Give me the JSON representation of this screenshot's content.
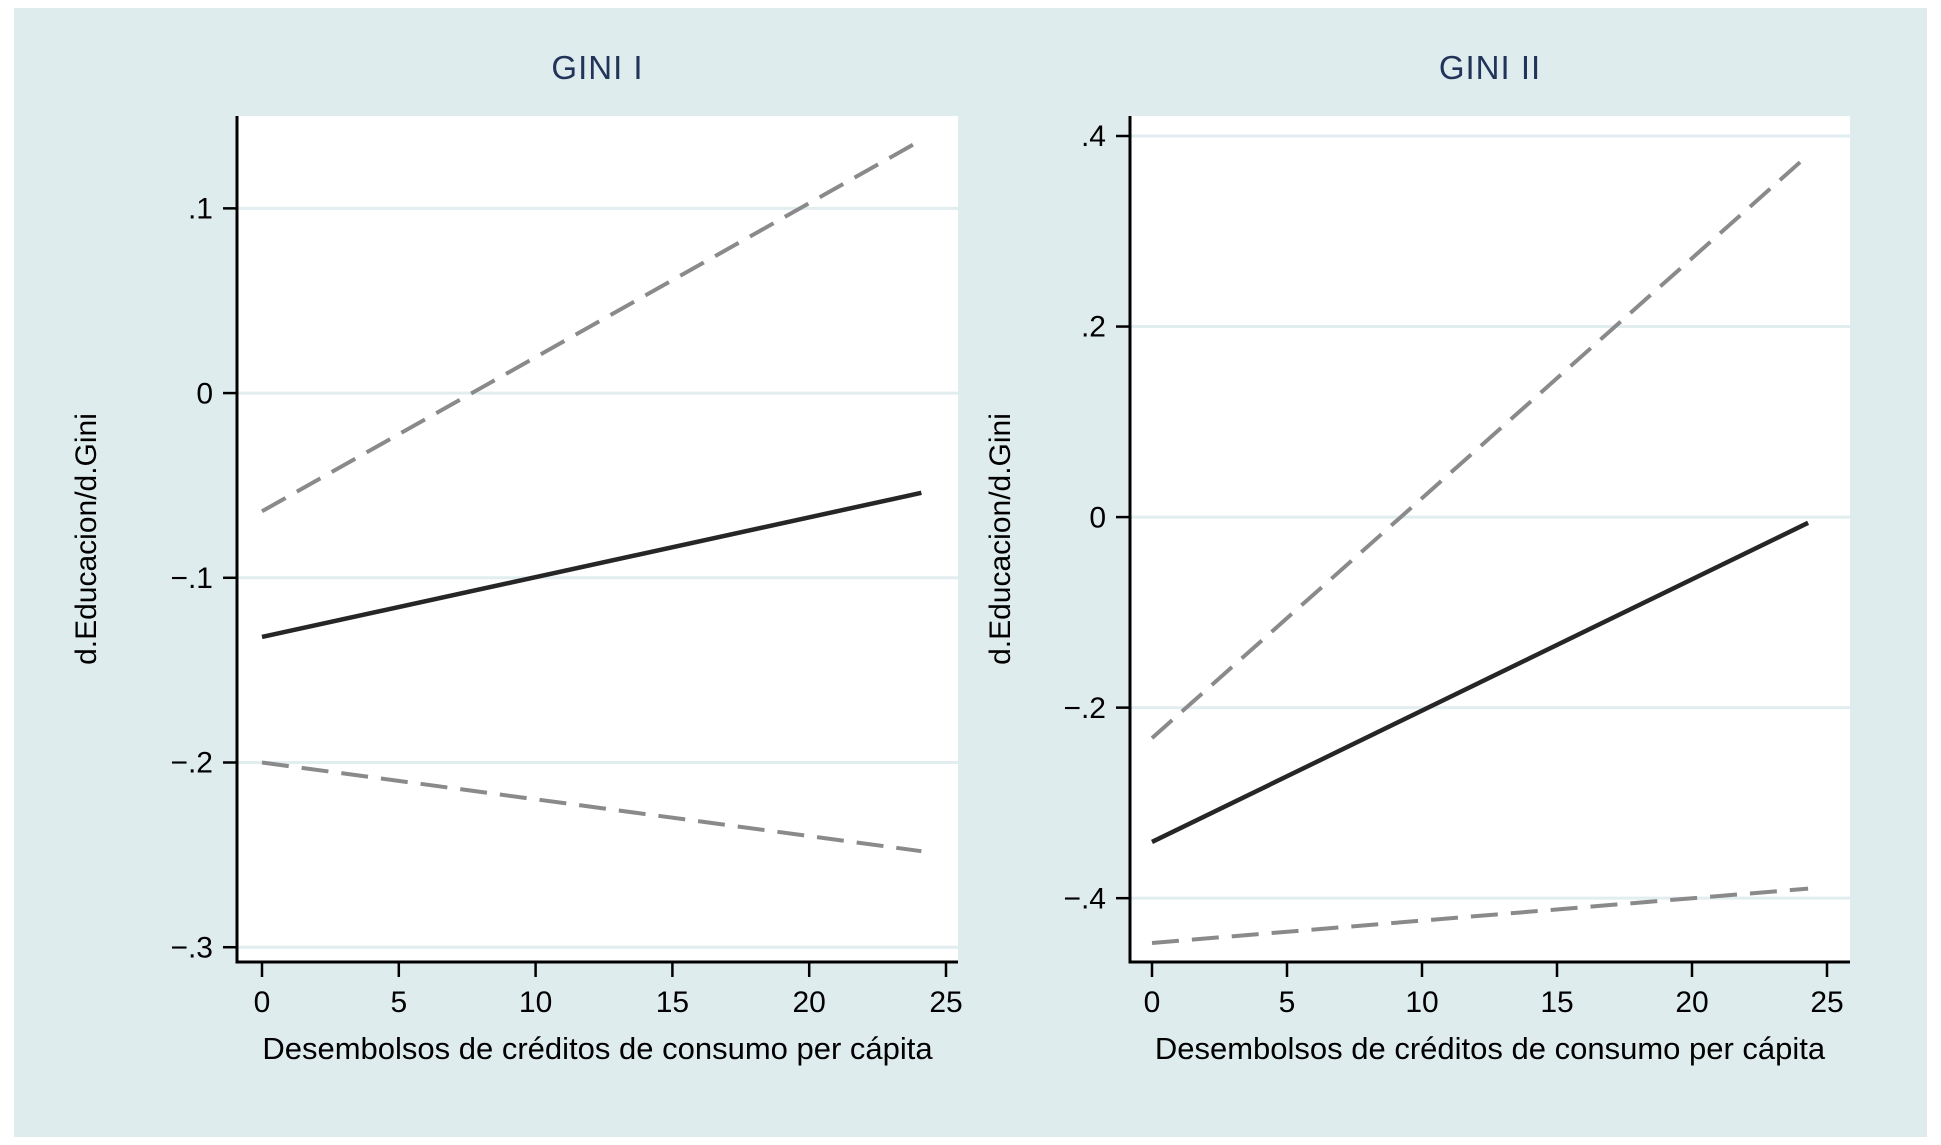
{
  "figure": {
    "background": "#ffffff",
    "canvas_color": "#dfecee",
    "plot_background": "#ffffff",
    "gridline_color": "#e2edef",
    "axis_color": "#000000",
    "tick_label_color": "#000000",
    "title_color": "#223459",
    "solid_line_color": "#262626",
    "dashed_line_color": "#8a8a8a"
  },
  "chart_data": [
    {
      "type": "line",
      "title": "GINI I",
      "xlabel": "Desembolsos de créditos de consumo per cápita",
      "ylabel": "d.Educacion/d.Gini",
      "xlim": [
        -0.9,
        25.4
      ],
      "ylim": [
        -0.308,
        0.15
      ],
      "grid": "horizontal-only",
      "legend": "none",
      "xticks": [
        {
          "value": 0,
          "label": "0"
        },
        {
          "value": 5,
          "label": "5"
        },
        {
          "value": 10,
          "label": "10"
        },
        {
          "value": 15,
          "label": "15"
        },
        {
          "value": 20,
          "label": "20"
        },
        {
          "value": 25,
          "label": "25"
        }
      ],
      "yticks": [
        {
          "value": 0.1,
          "label": ".1"
        },
        {
          "value": 0,
          "label": "0"
        },
        {
          "value": -0.1,
          "label": "−.1"
        },
        {
          "value": -0.2,
          "label": "−.2"
        },
        {
          "value": -0.3,
          "label": "−.3"
        }
      ],
      "series": [
        {
          "name": "marginal-effect",
          "style": "solid",
          "x": [
            0,
            24.1
          ],
          "y": [
            -0.132,
            -0.054
          ]
        },
        {
          "name": "ci-upper",
          "style": "dashed",
          "x": [
            0,
            24.1
          ],
          "y": [
            -0.064,
            0.137
          ]
        },
        {
          "name": "ci-lower",
          "style": "dashed",
          "x": [
            0,
            24.1
          ],
          "y": [
            -0.2,
            -0.248
          ]
        }
      ]
    },
    {
      "type": "line",
      "title": "GINI II",
      "xlabel": "Desembolsos de créditos de consumo per cápita",
      "ylabel": "d.Educacion/d.Gini",
      "xlim": [
        -0.8,
        25.9
      ],
      "ylim": [
        -0.467,
        0.421
      ],
      "grid": "horizontal-only",
      "legend": "none",
      "xticks": [
        {
          "value": 0,
          "label": "0"
        },
        {
          "value": 5,
          "label": "5"
        },
        {
          "value": 10,
          "label": "10"
        },
        {
          "value": 15,
          "label": "15"
        },
        {
          "value": 20,
          "label": "20"
        },
        {
          "value": 25,
          "label": "25"
        }
      ],
      "yticks": [
        {
          "value": 0.4,
          "label": ".4"
        },
        {
          "value": 0.2,
          "label": ".2"
        },
        {
          "value": 0,
          "label": "0"
        },
        {
          "value": -0.2,
          "label": "−.2"
        },
        {
          "value": -0.4,
          "label": "−.4"
        }
      ],
      "series": [
        {
          "name": "marginal-effect",
          "style": "solid",
          "x": [
            0,
            24.3
          ],
          "y": [
            -0.341,
            -0.006
          ]
        },
        {
          "name": "ci-upper",
          "style": "dashed",
          "x": [
            0,
            24.3
          ],
          "y": [
            -0.232,
            0.38
          ]
        },
        {
          "name": "ci-lower",
          "style": "dashed",
          "x": [
            0,
            24.3
          ],
          "y": [
            -0.447,
            -0.39
          ]
        }
      ]
    }
  ]
}
